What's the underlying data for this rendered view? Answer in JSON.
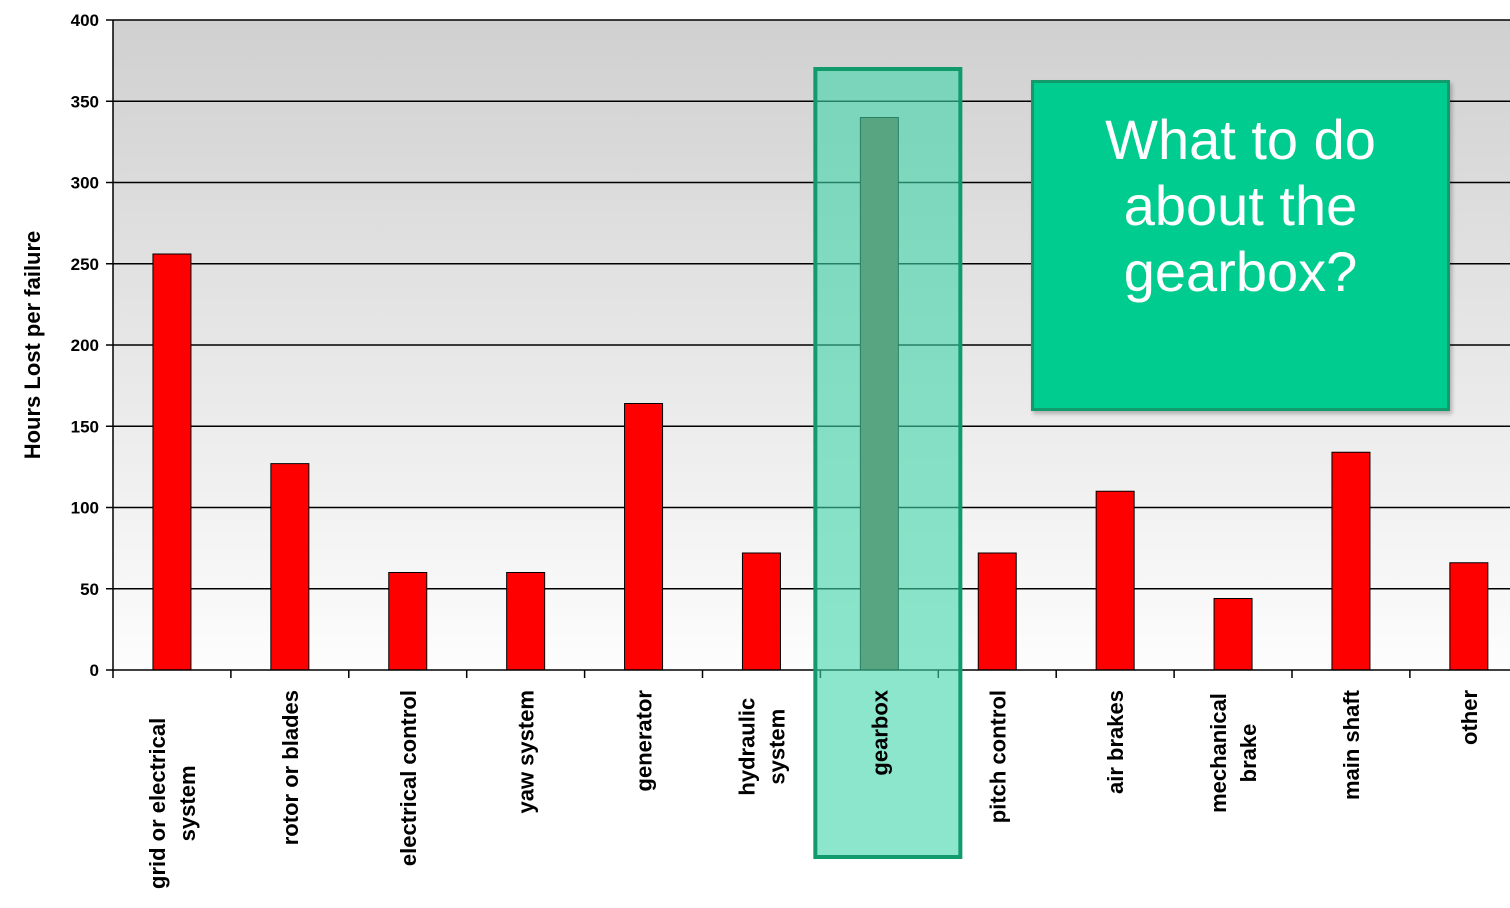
{
  "chart_data": {
    "type": "bar",
    "ylabel": "Hours Lost per failure",
    "xlabel": "",
    "ylim": [
      0,
      400
    ],
    "yticks": [
      0,
      50,
      100,
      150,
      200,
      250,
      300,
      350,
      400
    ],
    "grid": true,
    "categories": [
      "grid or electrical system",
      "rotor or blades",
      "electrical control",
      "yaw system",
      "generator",
      "hydraulic system",
      "gearbox",
      "pitch control",
      "air brakes",
      "mechanical brake",
      "main shaft",
      "other"
    ],
    "category_label_lines": [
      [
        "grid or electrical",
        "system"
      ],
      [
        "rotor or blades"
      ],
      [
        "electrical control"
      ],
      [
        "yaw system"
      ],
      [
        "generator"
      ],
      [
        "hydraulic",
        "system"
      ],
      [
        "gearbox"
      ],
      [
        "pitch control"
      ],
      [
        "air brakes"
      ],
      [
        "mechanical",
        "brake"
      ],
      [
        "main shaft"
      ],
      [
        "other"
      ]
    ],
    "values": [
      256,
      127,
      60,
      60,
      164,
      72,
      340,
      72,
      110,
      44,
      134,
      66
    ],
    "highlighted_category": "gearbox",
    "colors": {
      "bar": "#ff0000",
      "bar_highlight": "#7d5f48",
      "highlight_box": "#119a6b",
      "highlight_fill": "#3fd6a8",
      "highlight_label": "#119a6b"
    }
  },
  "callout": {
    "text": "What to do\nabout the\ngearbox?",
    "background": "#00cc8f"
  }
}
